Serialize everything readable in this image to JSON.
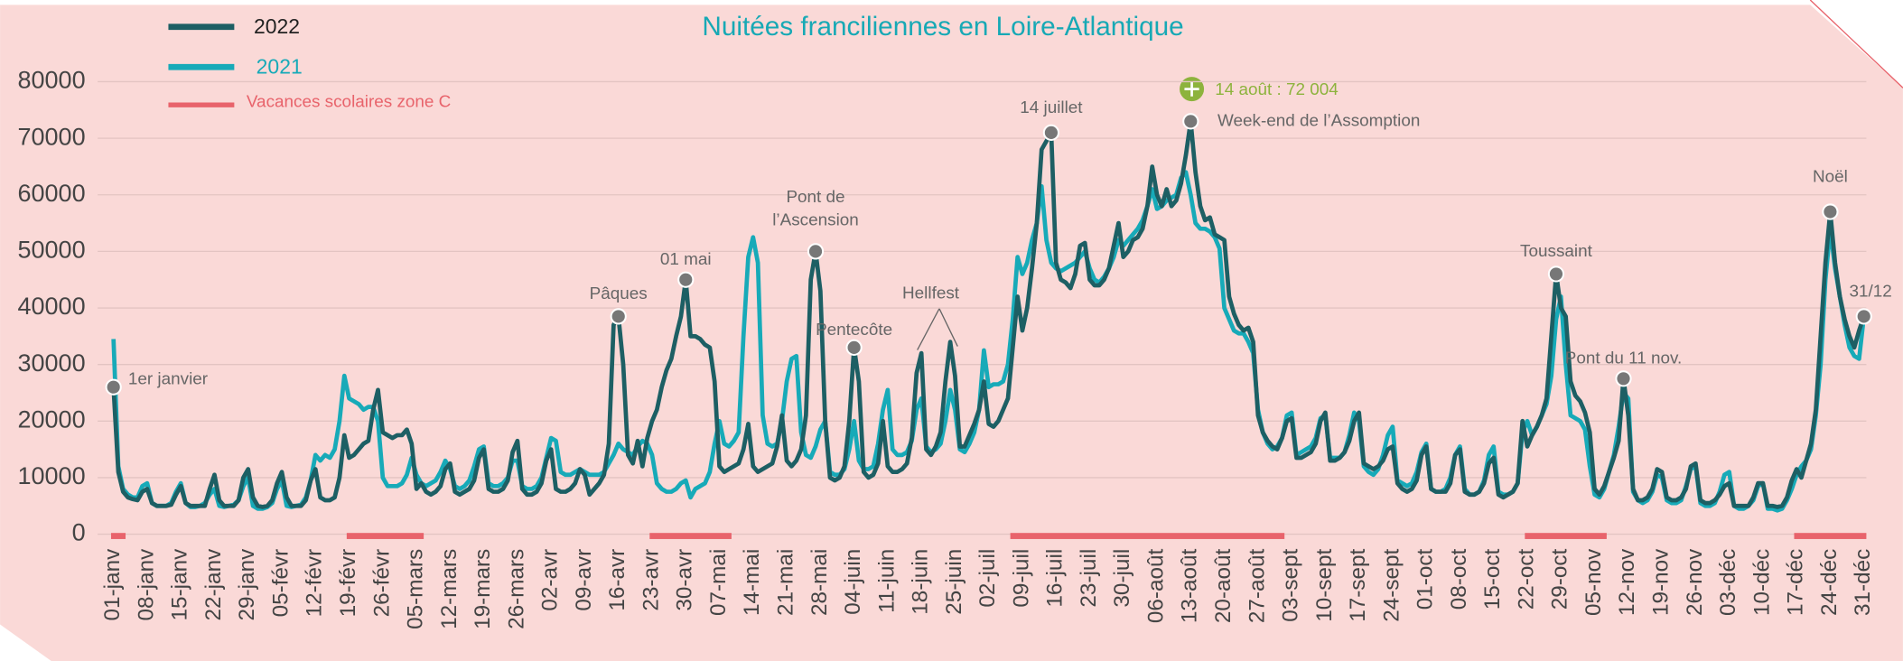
{
  "chart_data": {
    "type": "line",
    "title": "Nuitées franciliennes en Loire-Atlantique",
    "categories": [
      "01-janv",
      null,
      null,
      null,
      null,
      null,
      null,
      "08-janv",
      null,
      null,
      null,
      null,
      null,
      null,
      "15-janv",
      null,
      null,
      null,
      null,
      null,
      null,
      "22-janv",
      null,
      null,
      null,
      null,
      null,
      null,
      "29-janv",
      null,
      null,
      null,
      null,
      null,
      null,
      "05-févr",
      null,
      null,
      null,
      null,
      null,
      null,
      "12-févr",
      null,
      null,
      null,
      null,
      null,
      null,
      "19-févr",
      null,
      null,
      null,
      null,
      null,
      null,
      "26-févr",
      null,
      null,
      null,
      null,
      null,
      null,
      "05-mars",
      null,
      null,
      null,
      null,
      null,
      null,
      "12-mars",
      null,
      null,
      null,
      null,
      null,
      null,
      "19-mars",
      null,
      null,
      null,
      null,
      null,
      null,
      "26-mars",
      null,
      null,
      null,
      null,
      null,
      null,
      "02-avr",
      null,
      null,
      null,
      null,
      null,
      null,
      "09-avr",
      null,
      null,
      null,
      null,
      null,
      null,
      "16-avr",
      null,
      null,
      null,
      null,
      null,
      null,
      "23-avr",
      null,
      null,
      null,
      null,
      null,
      null,
      "30-avr",
      null,
      null,
      null,
      null,
      null,
      null,
      "07-mai",
      null,
      null,
      null,
      null,
      null,
      null,
      "14-mai",
      null,
      null,
      null,
      null,
      null,
      null,
      "21-mai",
      null,
      null,
      null,
      null,
      null,
      null,
      "28-mai",
      null,
      null,
      null,
      null,
      null,
      null,
      "04-juin",
      null,
      null,
      null,
      null,
      null,
      null,
      "11-juin",
      null,
      null,
      null,
      null,
      null,
      null,
      "18-juin",
      null,
      null,
      null,
      null,
      null,
      null,
      "25-juin",
      null,
      null,
      null,
      null,
      null,
      null,
      "02-juil",
      null,
      null,
      null,
      null,
      null,
      null,
      "09-juil",
      null,
      null,
      null,
      null,
      null,
      null,
      "16-juil",
      null,
      null,
      null,
      null,
      null,
      null,
      "23-juil",
      null,
      null,
      null,
      null,
      null,
      null,
      "30-juil",
      null,
      null,
      null,
      null,
      null,
      null,
      "06-août",
      null,
      null,
      null,
      null,
      null,
      null,
      "13-août",
      null,
      null,
      null,
      null,
      null,
      null,
      "20-août",
      null,
      null,
      null,
      null,
      null,
      null,
      "27-août",
      null,
      null,
      null,
      null,
      null,
      null,
      "03-sept",
      null,
      null,
      null,
      null,
      null,
      null,
      "10-sept",
      null,
      null,
      null,
      null,
      null,
      null,
      "17-sept",
      null,
      null,
      null,
      null,
      null,
      null,
      "24-sept",
      null,
      null,
      null,
      null,
      null,
      null,
      "01-oct",
      null,
      null,
      null,
      null,
      null,
      null,
      "08-oct",
      null,
      null,
      null,
      null,
      null,
      null,
      "15-oct",
      null,
      null,
      null,
      null,
      null,
      null,
      "22-oct",
      null,
      null,
      null,
      null,
      null,
      null,
      "29-oct",
      null,
      null,
      null,
      null,
      null,
      null,
      "05-nov",
      null,
      null,
      null,
      null,
      null,
      null,
      "12-nov",
      null,
      null,
      null,
      null,
      null,
      null,
      "19-nov",
      null,
      null,
      null,
      null,
      null,
      null,
      "26-nov",
      null,
      null,
      null,
      null,
      null,
      null,
      "03-déc",
      null,
      null,
      null,
      null,
      null,
      null,
      "10-déc",
      null,
      null,
      null,
      null,
      null,
      null,
      "17-déc",
      null,
      null,
      null,
      null,
      null,
      null,
      "24-déc",
      null,
      null,
      null,
      null,
      null,
      null,
      "31-déc"
    ],
    "series": [
      {
        "name": "2022",
        "color": "#1d5f64",
        "values": [
          26000,
          11000,
          7500,
          6500,
          6200,
          6000,
          7500,
          8000,
          5500,
          5000,
          5000,
          5000,
          5200,
          7000,
          8500,
          5500,
          5000,
          5000,
          5000,
          5000,
          8000,
          10500,
          6000,
          5000,
          5000,
          5000,
          6000,
          10000,
          11500,
          6500,
          5000,
          4800,
          5000,
          6000,
          9000,
          11000,
          6500,
          5000,
          5000,
          5000,
          6000,
          9500,
          11500,
          6500,
          6000,
          6000,
          6500,
          10000,
          17500,
          13500,
          14000,
          15000,
          16000,
          16500,
          22000,
          25500,
          18000,
          17500,
          17000,
          17500,
          17500,
          18500,
          16000,
          8000,
          9000,
          7500,
          7000,
          7500,
          8500,
          11500,
          12500,
          7500,
          7000,
          7500,
          8000,
          9500,
          13500,
          15000,
          8000,
          7500,
          7500,
          8000,
          9500,
          14500,
          16500,
          8000,
          7000,
          7000,
          7500,
          9000,
          13000,
          15000,
          8000,
          7500,
          7500,
          8000,
          9000,
          11500,
          10500,
          7000,
          8000,
          9000,
          10500,
          16000,
          37000,
          38500,
          30000,
          14000,
          12500,
          16500,
          12000,
          17000,
          20000,
          22000,
          26000,
          29000,
          31000,
          35000,
          38500,
          45000,
          35000,
          35000,
          34500,
          33500,
          33000,
          27000,
          12000,
          11000,
          11500,
          12000,
          12500,
          15000,
          19500,
          12000,
          11000,
          11500,
          12000,
          12500,
          15500,
          21000,
          13000,
          12000,
          13000,
          15000,
          21000,
          45000,
          50000,
          43000,
          20000,
          10000,
          9500,
          10000,
          12000,
          20000,
          33000,
          27000,
          11000,
          10000,
          10500,
          12500,
          20000,
          12000,
          11000,
          11000,
          11500,
          12500,
          17000,
          28500,
          32000,
          15000,
          14000,
          15500,
          18000,
          27000,
          34000,
          28000,
          15500,
          15500,
          17500,
          19500,
          22000,
          27000,
          19500,
          19000,
          20000,
          22000,
          24000,
          33000,
          42000,
          36000,
          40000,
          47000,
          55000,
          68000,
          69500,
          71000,
          48000,
          45000,
          44500,
          43500,
          46000,
          51000,
          51500,
          45000,
          44000,
          44000,
          45000,
          47000,
          51000,
          55000,
          49000,
          50000,
          52000,
          52500,
          54000,
          58000,
          65000,
          60000,
          58000,
          61000,
          58000,
          59000,
          62000,
          67000,
          73000,
          64000,
          58000,
          55500,
          56000,
          53000,
          52500,
          52000,
          42000,
          39000,
          37000,
          36000,
          36500,
          34000,
          21000,
          18000,
          16500,
          15500,
          15000,
          17000,
          20000,
          20500,
          13500,
          13500,
          14000,
          14500,
          16000,
          20000,
          21500,
          13000,
          13000,
          13500,
          14500,
          16500,
          20000,
          21500,
          12500,
          12000,
          11500,
          12000,
          13000,
          15000,
          15500,
          9000,
          8000,
          7500,
          8000,
          9500,
          14000,
          15500,
          8000,
          7500,
          7500,
          7500,
          9000,
          14000,
          15000,
          7500,
          7000,
          7000,
          7500,
          9000,
          12500,
          13500,
          7000,
          6500,
          7000,
          7500,
          9000,
          20000,
          15500,
          17500,
          19000,
          21000,
          24000,
          35000,
          46000,
          40000,
          38500,
          27000,
          24500,
          23500,
          21500,
          18000,
          8000,
          7000,
          8500,
          11000,
          13500,
          16500,
          27500,
          21000,
          8000,
          6000,
          6000,
          6500,
          8000,
          11500,
          11000,
          6500,
          6000,
          6000,
          6500,
          8000,
          12000,
          12500,
          6000,
          5500,
          5500,
          6000,
          7000,
          8500,
          9000,
          5000,
          5000,
          5000,
          5000,
          6500,
          9000,
          9000,
          5000,
          5000,
          4800,
          5000,
          6500,
          9500,
          11500,
          10000,
          13000,
          16000,
          22000,
          35000,
          48000,
          57000,
          48000,
          42000,
          38000,
          35000,
          33000,
          36000,
          38500
        ]
      },
      {
        "name": "2021",
        "color": "#17aab8",
        "values": [
          34500,
          12000,
          8000,
          7000,
          6500,
          6500,
          8500,
          9000,
          5500,
          5000,
          5000,
          5000,
          5500,
          7500,
          9000,
          5500,
          4800,
          4800,
          5000,
          5500,
          7000,
          8000,
          5000,
          4800,
          5000,
          5200,
          6000,
          8500,
          10000,
          5000,
          4500,
          4500,
          4800,
          5500,
          8000,
          9500,
          5000,
          4800,
          5000,
          5200,
          6500,
          9500,
          14000,
          13000,
          14000,
          13500,
          15000,
          20000,
          28000,
          24000,
          23500,
          23000,
          22000,
          22500,
          22500,
          20000,
          10000,
          8500,
          8500,
          8500,
          9000,
          10500,
          13500,
          10500,
          9000,
          8500,
          9000,
          9500,
          11000,
          13000,
          11500,
          8500,
          8000,
          8500,
          9500,
          12000,
          15000,
          15500,
          9000,
          8500,
          8500,
          9000,
          10000,
          13000,
          13000,
          8500,
          8000,
          8000,
          8500,
          10000,
          13500,
          17000,
          16500,
          11000,
          10500,
          10500,
          11000,
          11500,
          11000,
          10500,
          10500,
          10500,
          11000,
          12500,
          14000,
          16000,
          15000,
          14500,
          14000,
          15500,
          16500,
          16000,
          14000,
          9000,
          8000,
          7500,
          7500,
          8000,
          9000,
          9500,
          6500,
          8000,
          8500,
          9000,
          11000,
          16000,
          20000,
          16000,
          15500,
          16500,
          18000,
          35000,
          49000,
          52500,
          48000,
          21000,
          16000,
          15500,
          16000,
          20000,
          27000,
          31000,
          31500,
          18000,
          14000,
          13500,
          15500,
          18500,
          20000,
          11000,
          10500,
          10500,
          11500,
          15000,
          20000,
          13000,
          11500,
          11500,
          12000,
          16000,
          22000,
          25500,
          15000,
          14000,
          14000,
          14500,
          16500,
          22000,
          24000,
          15500,
          14500,
          15000,
          16000,
          20000,
          25500,
          22000,
          15000,
          14500,
          16000,
          18000,
          22000,
          32500,
          26000,
          26500,
          26500,
          27000,
          30000,
          38000,
          49000,
          46000,
          48000,
          52000,
          55000,
          61500,
          52000,
          48000,
          47000,
          46500,
          47000,
          47500,
          48000,
          49000,
          50000,
          47000,
          45000,
          44500,
          45500,
          47000,
          49000,
          52000,
          51000,
          52000,
          53000,
          54000,
          55500,
          58000,
          61000,
          57500,
          58000,
          59000,
          59500,
          60000,
          63000,
          64000,
          60000,
          55000,
          54000,
          54000,
          53500,
          52500,
          50500,
          40000,
          38000,
          36000,
          35500,
          35500,
          34000,
          32000,
          22000,
          18000,
          16000,
          15000,
          15500,
          17000,
          21000,
          21500,
          14000,
          14500,
          15000,
          15500,
          17000,
          20500,
          21000,
          13500,
          13500,
          13500,
          14500,
          17500,
          21500,
          20000,
          12000,
          11000,
          10500,
          11500,
          14000,
          17500,
          19000,
          9500,
          9000,
          8500,
          9000,
          11000,
          14500,
          16000,
          8000,
          7500,
          7500,
          8000,
          10000,
          14000,
          15500,
          8000,
          7000,
          7000,
          7500,
          9500,
          14000,
          15500,
          7500,
          7000,
          7000,
          7500,
          9000,
          18000,
          20000,
          17500,
          19000,
          21000,
          23000,
          28000,
          38000,
          42000,
          30000,
          21000,
          20500,
          20000,
          18500,
          12000,
          7000,
          6500,
          8000,
          11000,
          14000,
          19000,
          25000,
          24000,
          7500,
          6000,
          5500,
          6000,
          7500,
          10500,
          10000,
          6000,
          5500,
          5500,
          6000,
          8500,
          11500,
          12000,
          5500,
          5000,
          5000,
          5500,
          7500,
          10500,
          11000,
          5000,
          4500,
          4500,
          5000,
          6000,
          8500,
          9000,
          4500,
          4500,
          4200,
          4500,
          6000,
          8000,
          10500,
          12000,
          13000,
          15000,
          21000,
          30000,
          45000,
          54000,
          47000,
          42000,
          37000,
          33000,
          31500,
          31000,
          38500
        ]
      }
    ],
    "holidays": {
      "name": "Vacances scolaires zone C",
      "color": "#e8636b",
      "ranges": [
        [
          0,
          2
        ],
        [
          49,
          64
        ],
        [
          112,
          128
        ],
        [
          187,
          243
        ],
        [
          294,
          310
        ],
        [
          350,
          364
        ]
      ]
    },
    "ylim": [
      0,
      80000
    ],
    "yticks": [
      0,
      10000,
      20000,
      30000,
      40000,
      50000,
      60000,
      70000,
      80000
    ],
    "grid": true,
    "annotations": [
      {
        "text": "1er janvier",
        "index": 0
      },
      {
        "text": "Pâques",
        "index": 105
      },
      {
        "text": "01 mai",
        "index": 119
      },
      {
        "text": [
          "Pont de",
          "l’Ascension"
        ],
        "index": 146
      },
      {
        "text": "Pentecôte",
        "index": 154
      },
      {
        "text": "14 juillet",
        "index": 195
      },
      {
        "text": "Week-end de l’Assomption",
        "index": 224
      },
      {
        "text": "Toussaint",
        "index": 300
      },
      {
        "text": "Pont du 11 nov.",
        "index": 314
      },
      {
        "text": "Noël",
        "index": 357
      },
      {
        "text": "31/12",
        "index": 364
      }
    ],
    "hellfest": "Hellfest",
    "peak_note": "14 août : 72 004"
  }
}
